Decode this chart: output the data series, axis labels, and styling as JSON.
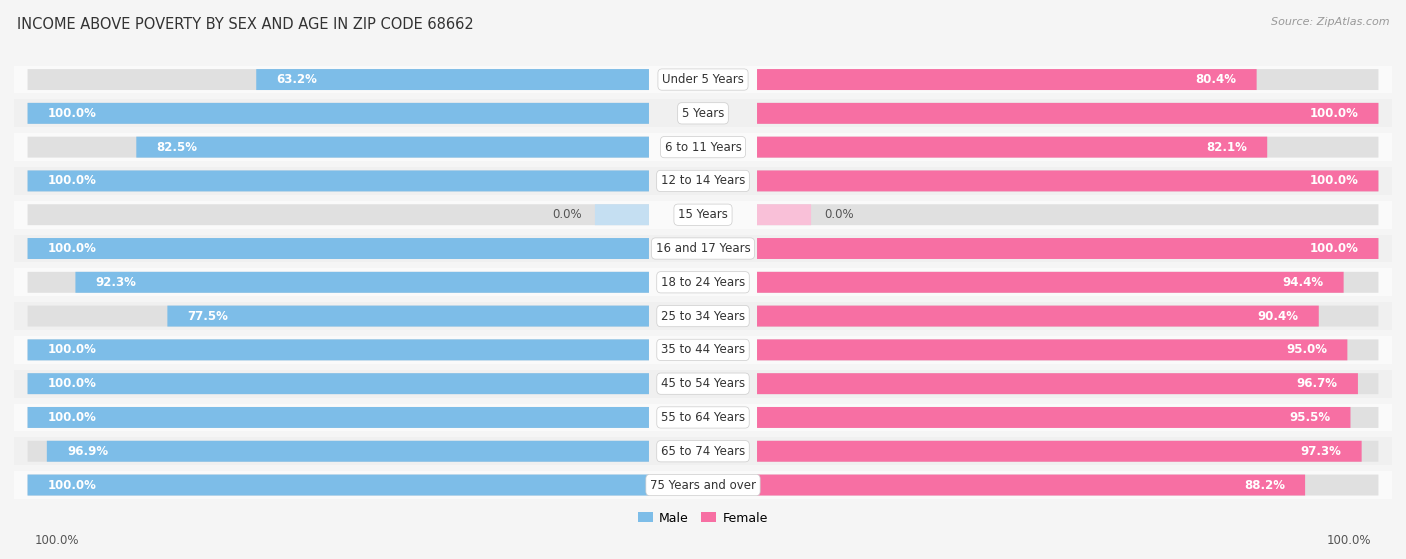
{
  "title": "INCOME ABOVE POVERTY BY SEX AND AGE IN ZIP CODE 68662",
  "source": "Source: ZipAtlas.com",
  "categories": [
    "Under 5 Years",
    "5 Years",
    "6 to 11 Years",
    "12 to 14 Years",
    "15 Years",
    "16 and 17 Years",
    "18 to 24 Years",
    "25 to 34 Years",
    "35 to 44 Years",
    "45 to 54 Years",
    "55 to 64 Years",
    "65 to 74 Years",
    "75 Years and over"
  ],
  "male_values": [
    63.2,
    100.0,
    82.5,
    100.0,
    0.0,
    100.0,
    92.3,
    77.5,
    100.0,
    100.0,
    100.0,
    96.9,
    100.0
  ],
  "female_values": [
    80.4,
    100.0,
    82.1,
    100.0,
    0.0,
    100.0,
    94.4,
    90.4,
    95.0,
    96.7,
    95.5,
    97.3,
    88.2
  ],
  "male_color": "#7dbde8",
  "female_color": "#f76fa3",
  "male_color_light": "#c5dff2",
  "female_color_light": "#f9c0d8",
  "male_label": "Male",
  "female_label": "Female",
  "bg_color_odd": "#f0f0f0",
  "bg_color_even": "#fafafa",
  "title_fontsize": 10.5,
  "label_fontsize": 8.5,
  "value_fontsize": 8.5,
  "legend_fontsize": 9,
  "source_fontsize": 8,
  "footer_male": "100.0%",
  "footer_female": "100.0%"
}
